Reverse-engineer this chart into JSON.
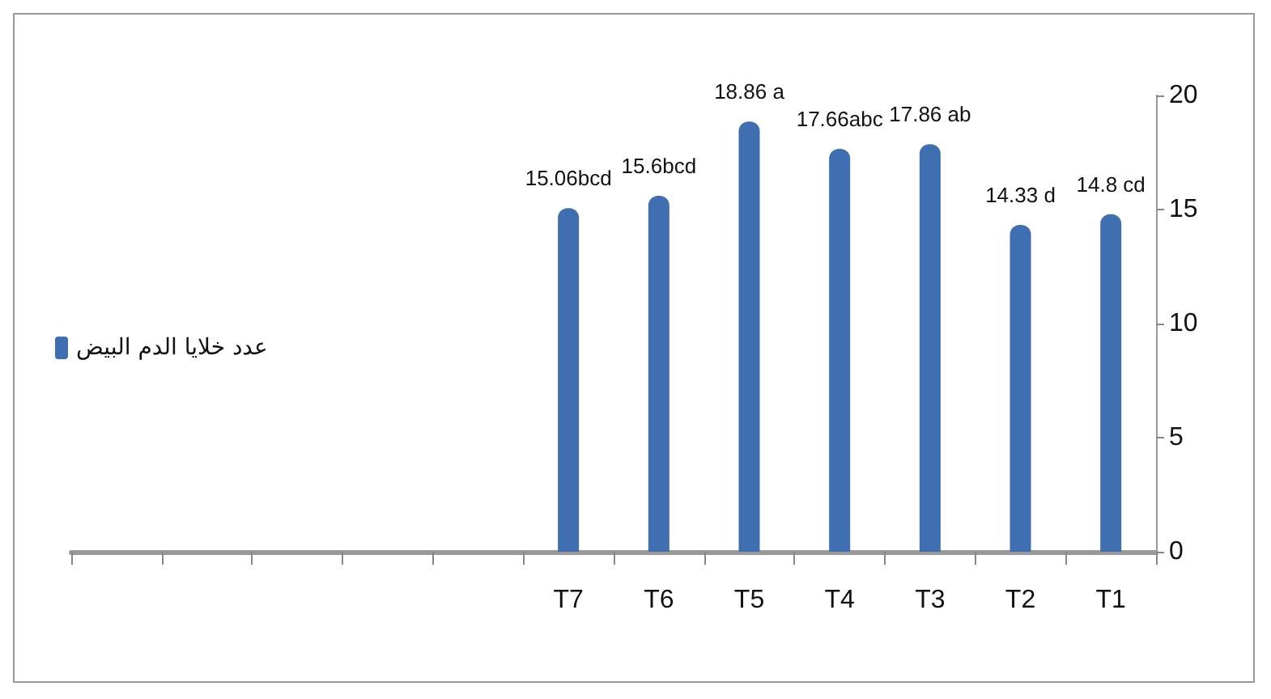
{
  "chart_data": {
    "type": "bar",
    "categories": [
      null,
      null,
      null,
      null,
      null,
      "T7",
      "T6",
      "T5",
      "T4",
      "T3",
      "T2",
      "T1"
    ],
    "series": [
      {
        "name": "عدد خلايا الدم البيض",
        "color": "#3f6fb0",
        "values": [
          null,
          null,
          null,
          null,
          null,
          15.06,
          15.6,
          18.86,
          17.66,
          17.86,
          14.33,
          14.8
        ],
        "value_labels": [
          null,
          null,
          null,
          null,
          null,
          "15.06bcd",
          "15.6bcd",
          "18.86 a",
          "17.66abc",
          "17.86 ab",
          "14.33 d",
          "14.8 cd"
        ]
      }
    ],
    "ylim": [
      0,
      20
    ],
    "yticks": [
      0,
      5,
      10,
      15,
      20
    ],
    "grid": false,
    "legend": "left"
  }
}
